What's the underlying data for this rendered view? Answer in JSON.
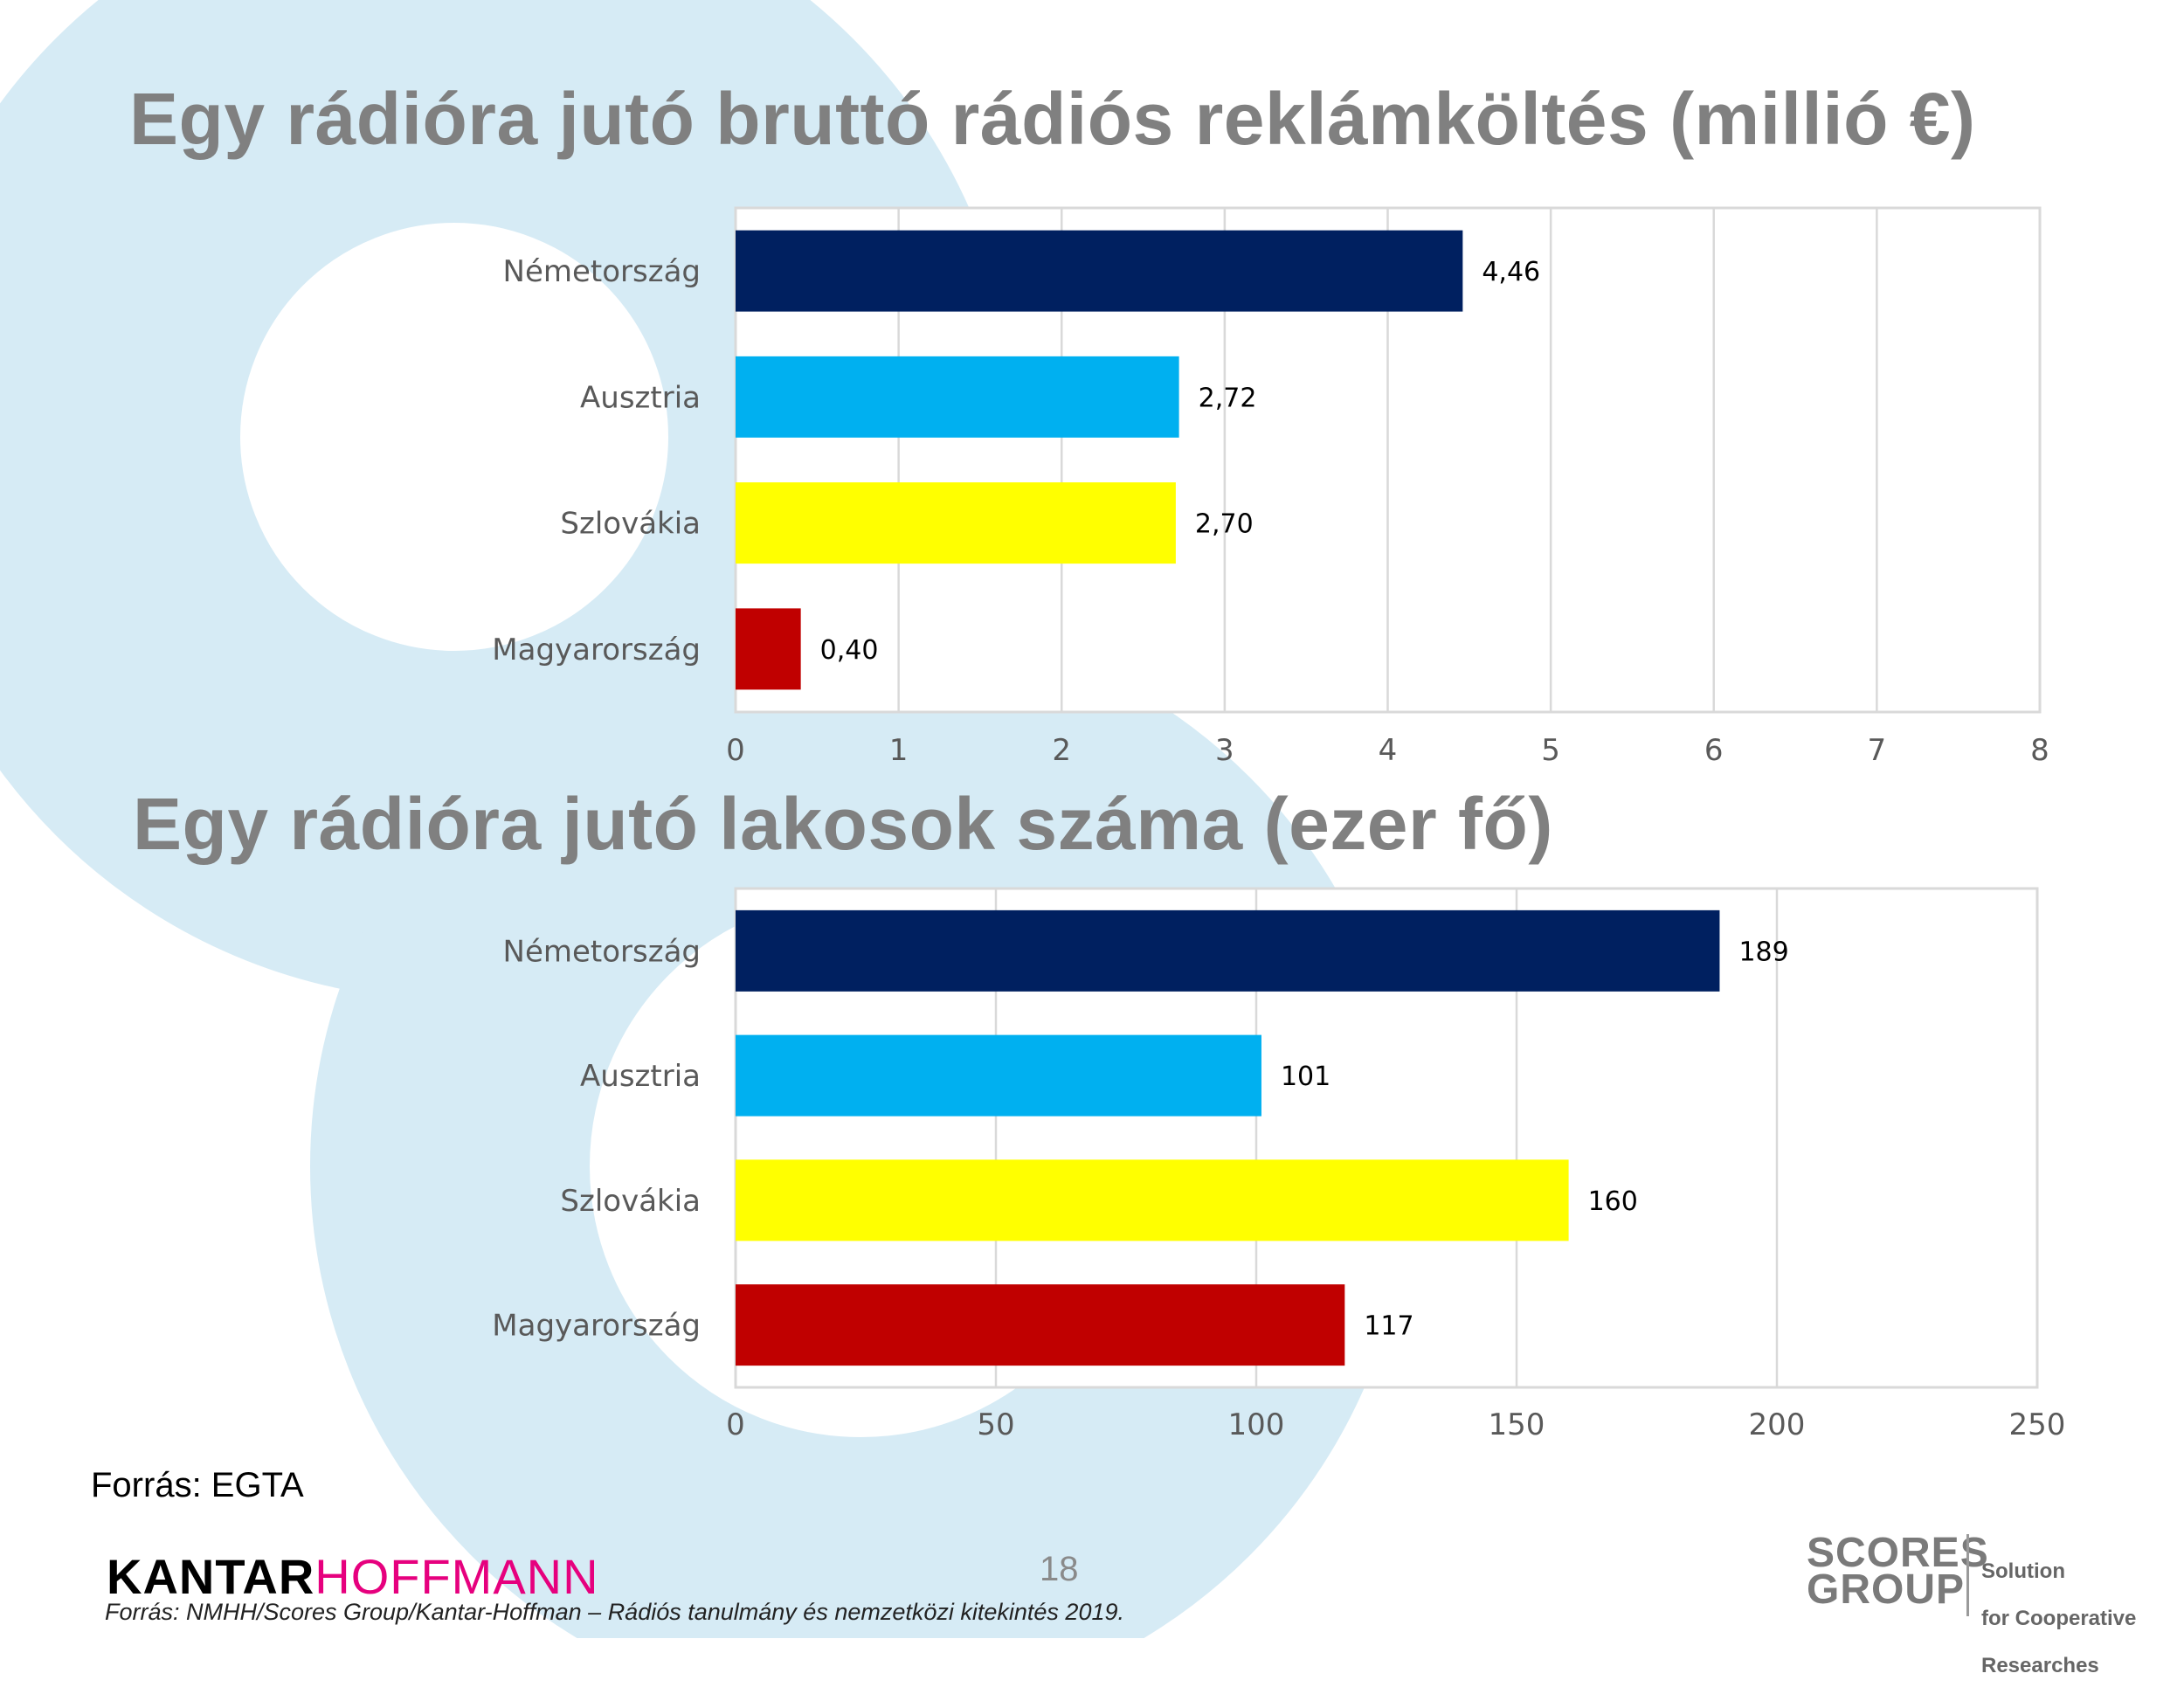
{
  "page": {
    "source_left": "Forrás: EGTA",
    "page_number": "18",
    "footer_source": "Forrás: NMHH/Scores Group/Kantar-Hoffman – Rádiós tanulmány és nemzetközi kitekintés 2019.",
    "logo_kantar": {
      "part1": "KANTAR",
      "part2": "HOFFMANN",
      "color1": "#000000",
      "color2": "#e6007e"
    },
    "logo_scores": {
      "line1": "SCORES",
      "line2": "GROUP",
      "tagline_1": "Solution",
      "tagline_2": "for Cooperative",
      "tagline_3": "Researches"
    },
    "background_color": "#d6ebf5"
  },
  "chart_data": [
    {
      "type": "bar",
      "orientation": "horizontal",
      "title": "Egy rádióra jutó bruttó rádiós reklámköltés (millió €)",
      "categories": [
        "Németország",
        "Ausztria",
        "Szlovákia",
        "Magyarország"
      ],
      "values": [
        4.46,
        2.72,
        2.7,
        0.4
      ],
      "value_labels": [
        "4,46",
        "2,72",
        "2,70",
        "0,40"
      ],
      "colors": [
        "#002060",
        "#00b0f0",
        "#ffff00",
        "#c00000"
      ],
      "xlim": [
        0,
        8
      ],
      "ticks": [
        0,
        1,
        2,
        3,
        4,
        5,
        6,
        7,
        8
      ],
      "tick_labels": [
        "0",
        "1",
        "2",
        "3",
        "4",
        "5",
        "6",
        "7",
        "8"
      ],
      "xlabel": "",
      "ylabel": "",
      "grid": true,
      "legend": "none"
    },
    {
      "type": "bar",
      "orientation": "horizontal",
      "title": "Egy rádióra jutó lakosok száma (ezer fő)",
      "categories": [
        "Németország",
        "Ausztria",
        "Szlovákia",
        "Magyarország"
      ],
      "values": [
        189,
        101,
        160,
        117
      ],
      "value_labels": [
        "189",
        "101",
        "160",
        "117"
      ],
      "colors": [
        "#002060",
        "#00b0f0",
        "#ffff00",
        "#c00000"
      ],
      "xlim": [
        0,
        250
      ],
      "ticks": [
        0,
        50,
        100,
        150,
        200,
        250
      ],
      "tick_labels": [
        "0",
        "50",
        "100",
        "150",
        "200",
        "250"
      ],
      "xlabel": "",
      "ylabel": "",
      "grid": true,
      "legend": "none"
    }
  ]
}
